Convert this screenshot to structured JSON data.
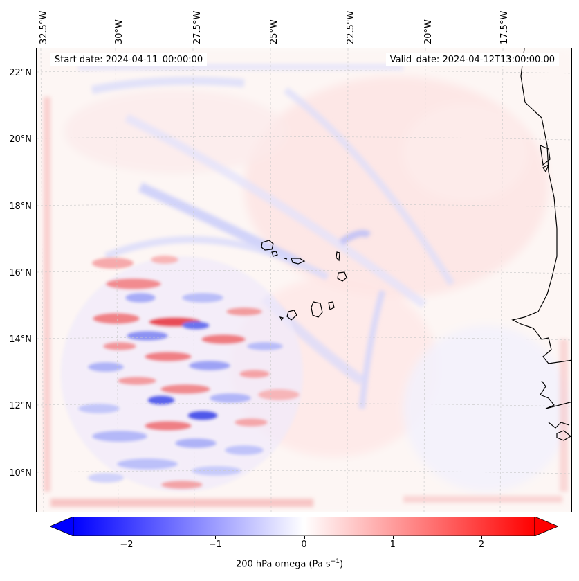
{
  "map": {
    "annotation_left": "Start date: 2024-04-11_00:00:00",
    "annotation_right": "Valid_date: 2024-04-12T13:00:00.00",
    "lon_labels": [
      "32.5°W",
      "30°W",
      "27.5°W",
      "25°W",
      "22.5°W",
      "20°W",
      "17.5°W"
    ],
    "lat_labels": [
      "22°N",
      "20°N",
      "18°N",
      "16°N",
      "14°N",
      "12°N",
      "10°N"
    ]
  },
  "colorbar": {
    "ticks": [
      "−2",
      "−1",
      "0",
      "1",
      "2"
    ],
    "tick_values": [
      -2,
      -1,
      0,
      1,
      2
    ],
    "min": -2.6,
    "max": 2.6,
    "label_prefix": "200 hPa omega (Pa s",
    "label_exponent": "−1",
    "label_suffix": ")",
    "colors": {
      "negative": "#0000ff",
      "zero": "#ffffff",
      "positive": "#ff0000"
    }
  }
}
